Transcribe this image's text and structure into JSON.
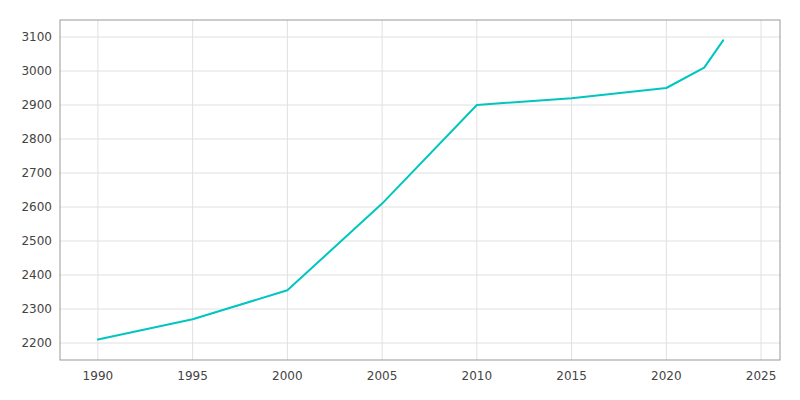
{
  "chart_data": {
    "type": "line",
    "x": [
      1990,
      1995,
      2000,
      2005,
      2010,
      2015,
      2020,
      2022,
      2023
    ],
    "values": [
      2210,
      2270,
      2355,
      2610,
      2900,
      2920,
      2950,
      3010,
      3090
    ],
    "color": "#00C5C0",
    "xlim": [
      1988,
      2026
    ],
    "ylim": [
      2150,
      3150
    ],
    "xticks": [
      1990,
      1995,
      2000,
      2005,
      2010,
      2015,
      2020,
      2025
    ],
    "yticks": [
      2200,
      2300,
      2400,
      2500,
      2600,
      2700,
      2800,
      2900,
      3000,
      3100
    ],
    "grid": true
  }
}
